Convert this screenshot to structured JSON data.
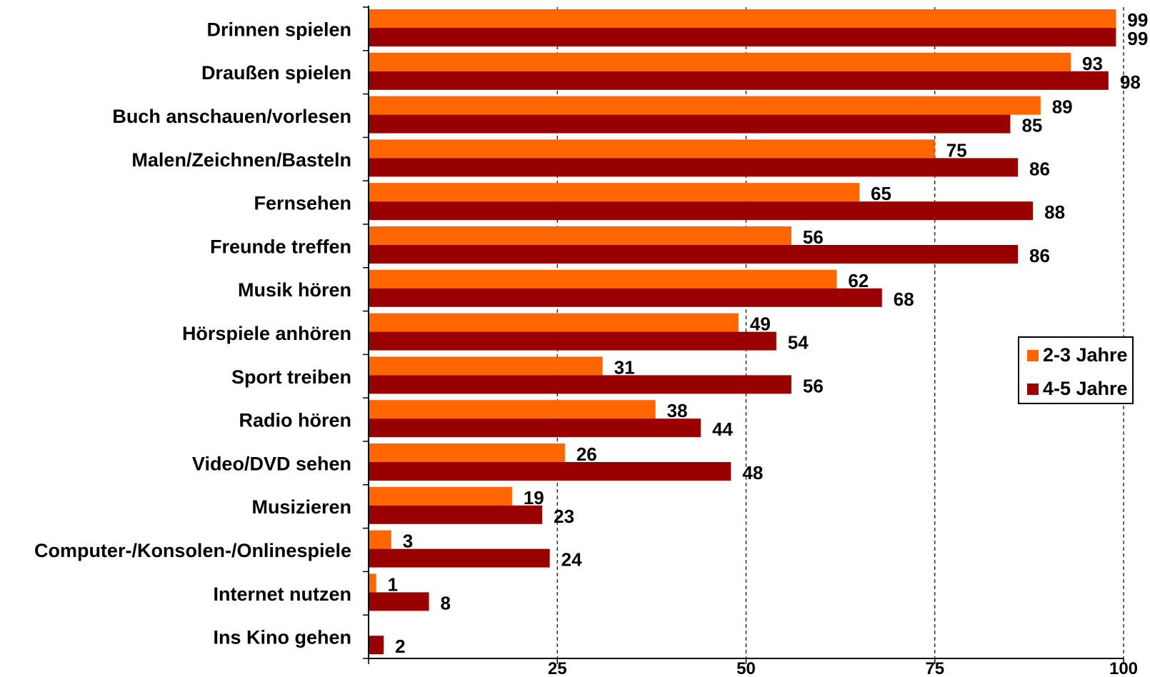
{
  "chart_data": {
    "type": "bar",
    "orientation": "horizontal",
    "categories": [
      "Drinnen spielen",
      "Draußen spielen",
      "Buch anschauen/vorlesen",
      "Malen/Zeichnen/Basteln",
      "Fernsehen",
      "Freunde treffen",
      "Musik hören",
      "Hörspiele anhören",
      "Sport treiben",
      "Radio hören",
      "Video/DVD sehen",
      "Musizieren",
      "Computer-/Konsolen-/Onlinespiele",
      "Internet nutzen",
      "Ins Kino gehen"
    ],
    "series": [
      {
        "name": "2-3 Jahre",
        "color": "#ff6600",
        "values": [
          99,
          93,
          89,
          75,
          65,
          56,
          62,
          49,
          31,
          38,
          26,
          19,
          3,
          1,
          0
        ]
      },
      {
        "name": "4-5 Jahre",
        "color": "#990000",
        "values": [
          99,
          98,
          85,
          86,
          88,
          86,
          68,
          54,
          56,
          44,
          48,
          23,
          24,
          8,
          2
        ]
      }
    ],
    "data_labels": {
      "2-3 Jahre": [
        "99",
        "93",
        "89",
        "75",
        "65",
        "56",
        "62",
        "49",
        "31",
        "38",
        "26",
        "19",
        "3",
        "1",
        ""
      ],
      "4-5 Jahre": [
        "99",
        "98",
        "85",
        "86",
        "88",
        "86",
        "68",
        "54",
        "56",
        "44",
        "48",
        "23",
        "24",
        "8",
        "2"
      ]
    },
    "xlim": [
      0,
      100
    ],
    "xticks": [
      25,
      50,
      75,
      100
    ],
    "xtick_labels": [
      "25",
      "50",
      "75",
      "100"
    ],
    "grid": "vertical-dashed",
    "legend_position": "right",
    "title": "",
    "xlabel": "",
    "ylabel": ""
  }
}
